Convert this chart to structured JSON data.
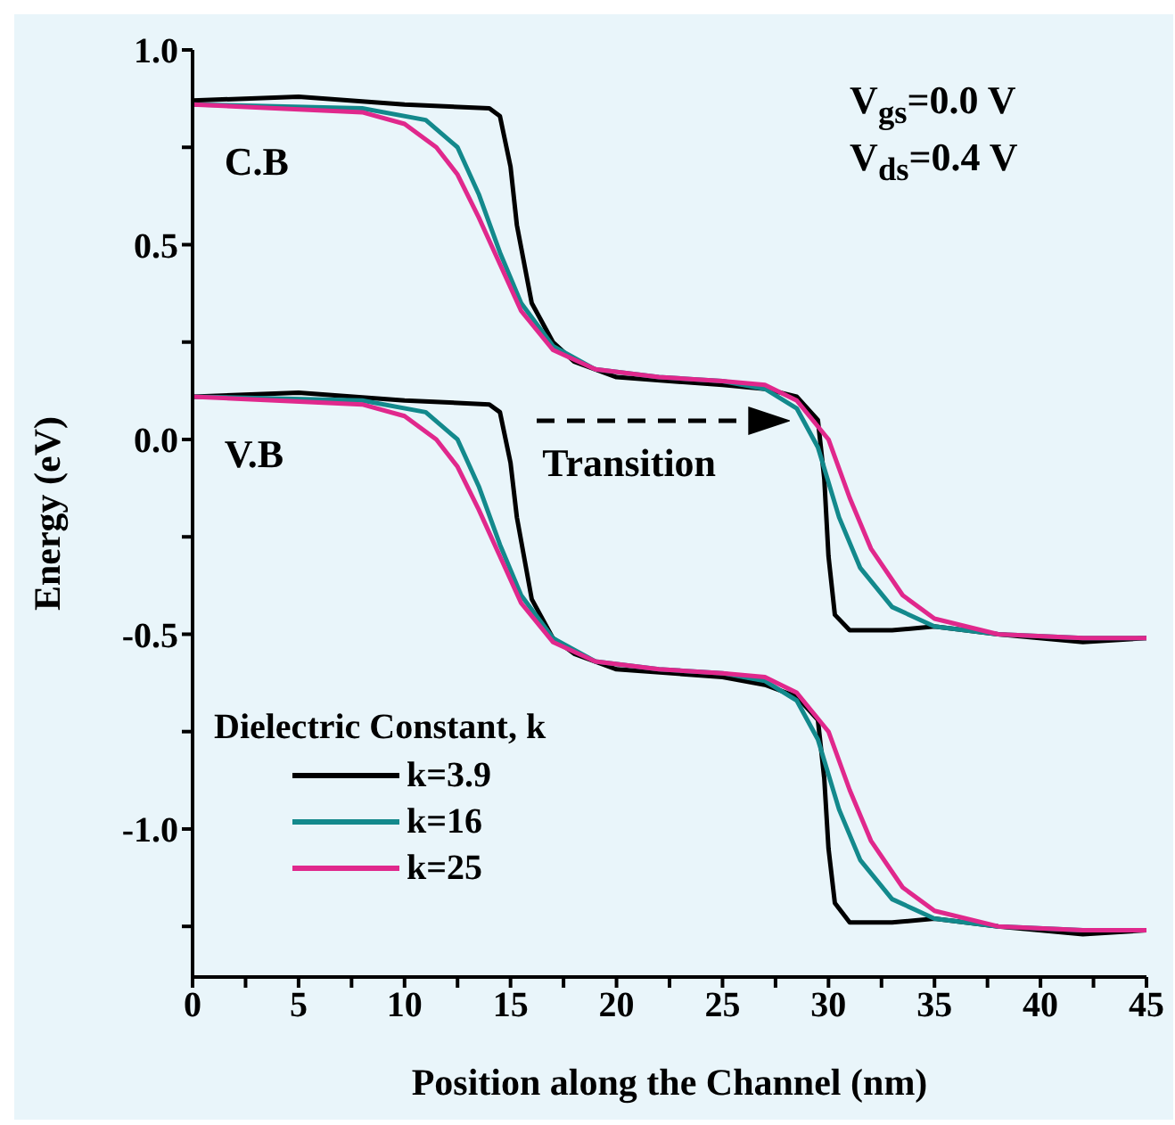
{
  "chart_data": {
    "type": "line",
    "xlabel": "Position along the Channel (nm)",
    "ylabel": "Energy (eV)",
    "legend_title": "Dielectric Constant, k",
    "legend": "bottom left",
    "marker": "none",
    "line_style": "solid",
    "grid": false,
    "xlim": [
      0,
      45
    ],
    "xticks": [
      0,
      {
        "value": 2.5,
        "label": null
      },
      5,
      {
        "value": 7.5,
        "label": null
      },
      10,
      {
        "value": 12.5,
        "label": null
      },
      15,
      {
        "value": 17.5,
        "label": null
      },
      20,
      {
        "value": 22.5,
        "label": null
      },
      25,
      {
        "value": 27.5,
        "label": null
      },
      30,
      {
        "value": 32.5,
        "label": null
      },
      35,
      {
        "value": 37.5,
        "label": null
      },
      40,
      {
        "value": 42.5,
        "label": null
      },
      45
    ],
    "ylim": [
      -1.38,
      1.0
    ],
    "yticks": [
      {
        "value": -1.25,
        "label": null
      },
      {
        "value": -1.0,
        "label": "-1.0"
      },
      {
        "value": -0.75,
        "label": null
      },
      {
        "value": -0.5,
        "label": "-0.5"
      },
      {
        "value": -0.25,
        "label": null
      },
      {
        "value": 0,
        "label": "0.0"
      },
      {
        "value": 0.25,
        "label": null
      },
      {
        "value": 0.5,
        "label": "0.5"
      },
      {
        "value": 0.75,
        "label": null
      },
      {
        "value": 1.0,
        "label": "1.0"
      }
    ],
    "annotations": [
      "C.B",
      "V.B",
      "Transition",
      "V$_{gs}$=0.0 V",
      "V$_{ds}$=0.4 V"
    ],
    "series": [
      {
        "name": "k=3.9",
        "color": "#000000",
        "x": [
          0,
          5,
          10,
          14,
          14.5,
          15,
          15.3,
          16,
          17,
          18,
          20,
          25,
          27,
          28.5,
          29.5,
          29.8,
          30,
          30.3,
          31,
          33,
          35,
          38,
          42,
          45
        ],
        "values": [
          0.87,
          0.88,
          0.86,
          0.85,
          0.83,
          0.7,
          0.55,
          0.35,
          0.25,
          0.2,
          0.16,
          0.14,
          0.13,
          0.11,
          0.05,
          -0.1,
          -0.3,
          -0.45,
          -0.49,
          -0.49,
          -0.48,
          -0.5,
          -0.52,
          -0.51
        ]
      },
      {
        "name": "k=16",
        "color": "#13898c",
        "x": [
          0,
          8,
          11,
          12.5,
          13.5,
          14.5,
          15.5,
          17,
          19,
          22,
          25,
          27,
          28.5,
          29.5,
          30.5,
          31.5,
          33,
          35,
          38,
          42,
          45
        ],
        "values": [
          0.86,
          0.85,
          0.82,
          0.75,
          0.63,
          0.48,
          0.35,
          0.24,
          0.18,
          0.16,
          0.15,
          0.13,
          0.08,
          -0.02,
          -0.2,
          -0.33,
          -0.43,
          -0.48,
          -0.5,
          -0.51,
          -0.51
        ]
      },
      {
        "name": "k=25",
        "color": "#e0288c",
        "x": [
          0,
          8,
          10,
          11.5,
          12.5,
          13.5,
          14.5,
          15.5,
          17,
          19,
          22,
          25,
          27,
          28.5,
          30,
          31,
          32,
          33.5,
          35,
          38,
          42,
          45
        ],
        "values": [
          0.86,
          0.84,
          0.81,
          0.75,
          0.68,
          0.57,
          0.45,
          0.33,
          0.23,
          0.18,
          0.16,
          0.15,
          0.14,
          0.1,
          0.0,
          -0.15,
          -0.28,
          -0.4,
          -0.46,
          -0.5,
          -0.51,
          -0.51
        ]
      },
      {
        "color": "#000000",
        "x": [
          0,
          5,
          10,
          14,
          14.5,
          15,
          15.3,
          16,
          17,
          18,
          20,
          25,
          27,
          28.5,
          29.5,
          29.8,
          30,
          30.3,
          31,
          33,
          35,
          38,
          42,
          45
        ],
        "values": [
          0.11,
          0.12,
          0.1,
          0.09,
          0.07,
          -0.06,
          -0.2,
          -0.41,
          -0.51,
          -0.55,
          -0.59,
          -0.61,
          -0.63,
          -0.66,
          -0.72,
          -0.87,
          -1.05,
          -1.19,
          -1.24,
          -1.24,
          -1.23,
          -1.25,
          -1.27,
          -1.26
        ]
      },
      {
        "color": "#13898c",
        "x": [
          0,
          8,
          11,
          12.5,
          13.5,
          14.5,
          15.5,
          17,
          19,
          22,
          25,
          27,
          28.5,
          29.5,
          30.5,
          31.5,
          33,
          35,
          38,
          42,
          45
        ],
        "values": [
          0.11,
          0.1,
          0.07,
          0,
          -0.12,
          -0.27,
          -0.4,
          -0.51,
          -0.57,
          -0.59,
          -0.6,
          -0.62,
          -0.67,
          -0.77,
          -0.95,
          -1.08,
          -1.18,
          -1.23,
          -1.25,
          -1.26,
          -1.26
        ]
      },
      {
        "color": "#e0288c",
        "x": [
          0,
          8,
          10,
          11.5,
          12.5,
          13.5,
          14.5,
          15.5,
          17,
          19,
          22,
          25,
          27,
          28.5,
          30,
          31,
          32,
          33.5,
          35,
          38,
          42,
          45
        ],
        "values": [
          0.11,
          0.09,
          0.06,
          0,
          -0.07,
          -0.18,
          -0.3,
          -0.42,
          -0.52,
          -0.57,
          -0.59,
          -0.6,
          -0.61,
          -0.65,
          -0.75,
          -0.9,
          -1.03,
          -1.15,
          -1.21,
          -1.25,
          -1.26,
          -1.26
        ]
      }
    ]
  }
}
